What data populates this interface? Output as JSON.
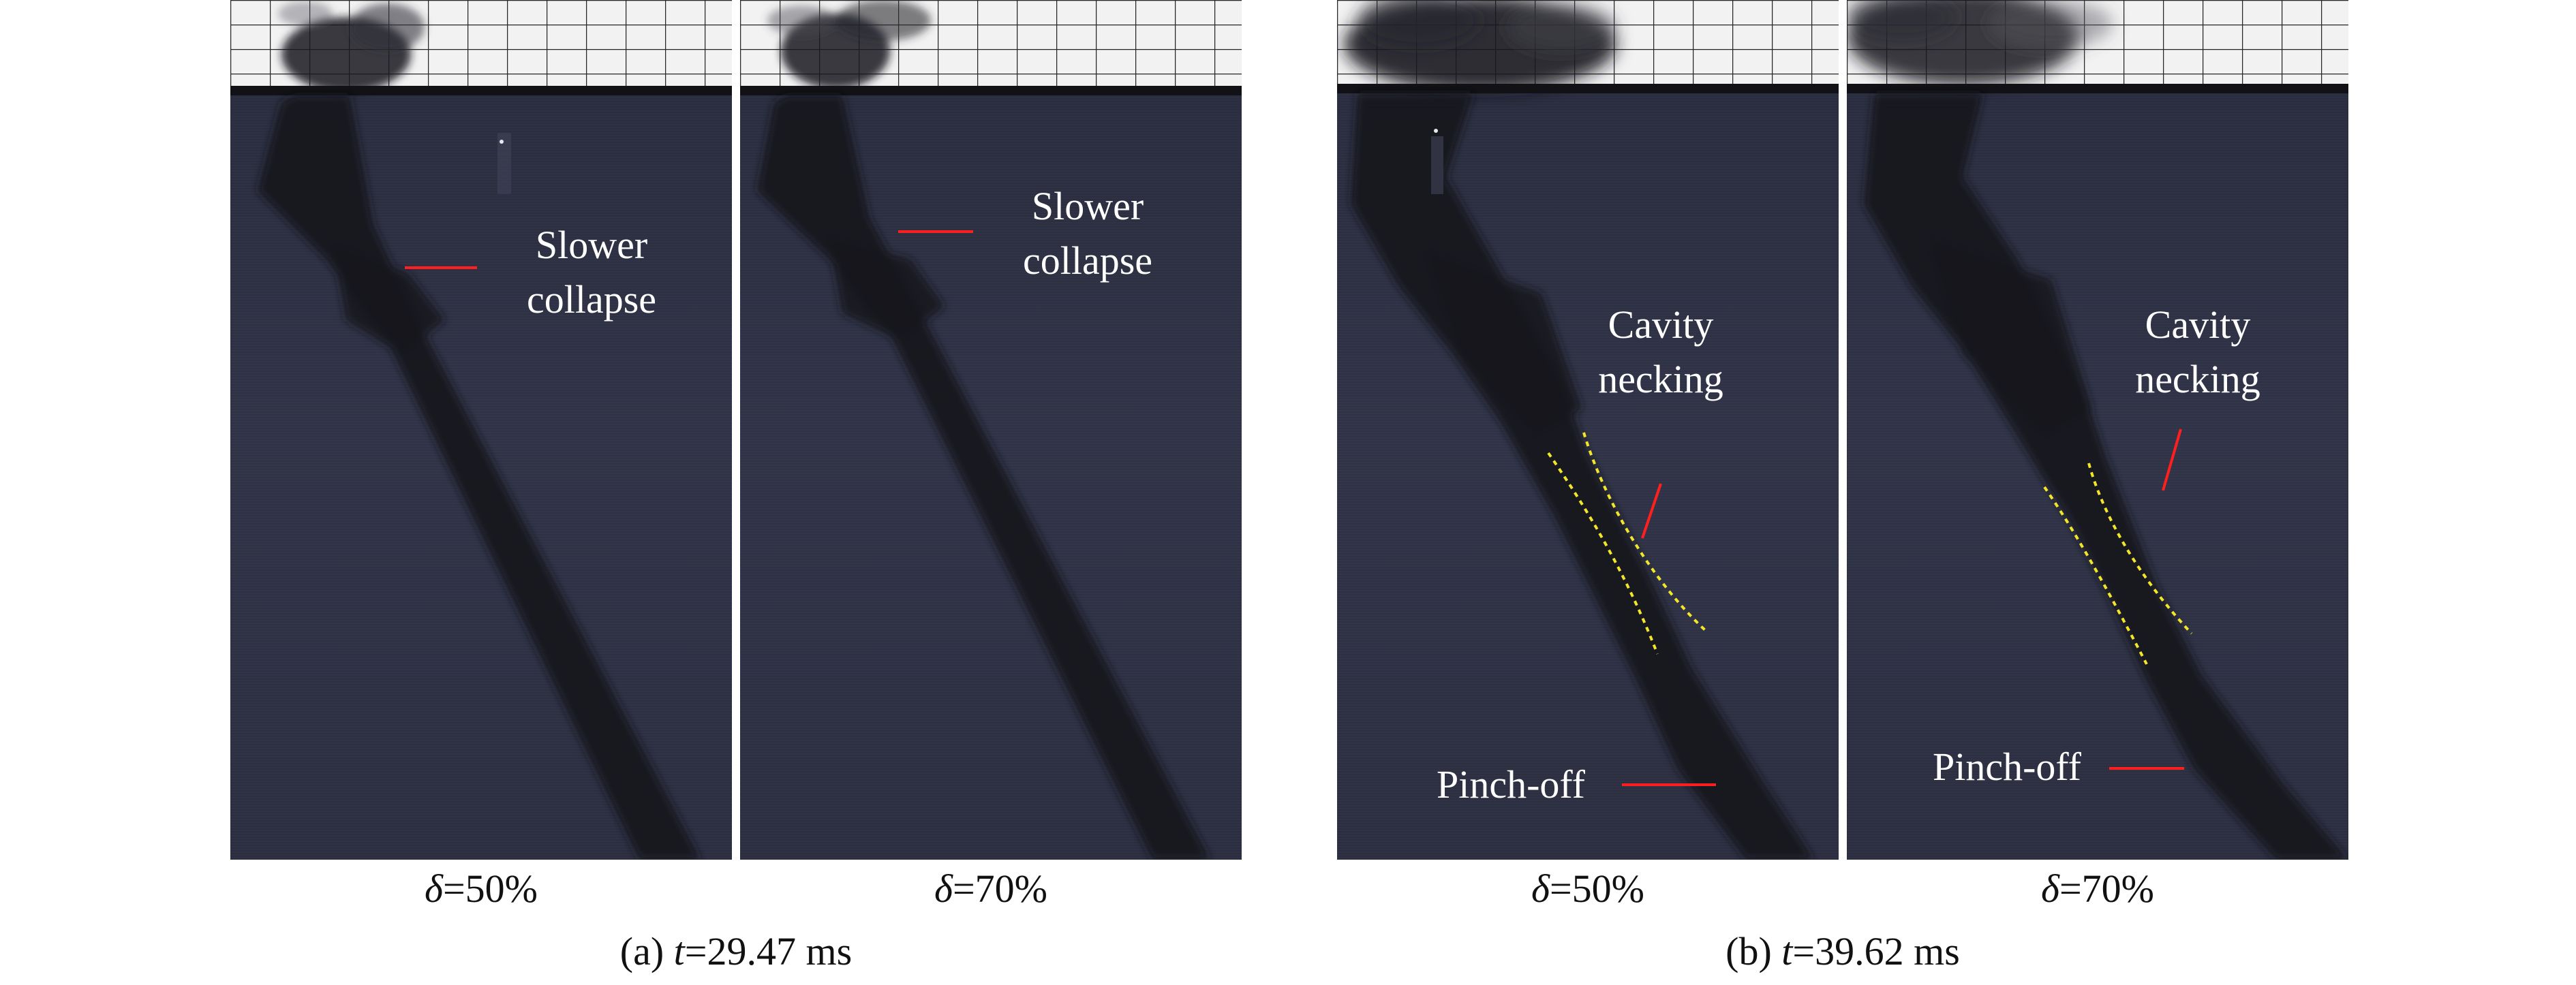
{
  "figure": {
    "groups": [
      {
        "caption_prefix": "(a) ",
        "caption_var": "t",
        "caption_value": "=29.47 ms",
        "panels": [
          {
            "delta_symbol": "δ",
            "delta_value": "=50%",
            "annotations": [
              {
                "lines": [
                  "Slower",
                  "collapse"
                ]
              }
            ]
          },
          {
            "delta_symbol": "δ",
            "delta_value": "=70%",
            "annotations": [
              {
                "lines": [
                  "Slower",
                  "collapse"
                ]
              }
            ]
          }
        ]
      },
      {
        "caption_prefix": "(b) ",
        "caption_var": "t",
        "caption_value": "=39.62 ms",
        "panels": [
          {
            "delta_symbol": "δ",
            "delta_value": "=50%",
            "annotations": [
              {
                "lines": [
                  "Cavity",
                  "necking"
                ]
              },
              {
                "lines": [
                  "Pinch-off"
                ]
              }
            ]
          },
          {
            "delta_symbol": "δ",
            "delta_value": "=70%",
            "annotations": [
              {
                "lines": [
                  "Cavity",
                  "necking"
                ]
              },
              {
                "lines": [
                  "Pinch-off"
                ]
              }
            ]
          }
        ]
      }
    ]
  },
  "colors": {
    "water": "#2f3244",
    "cavity": "#15161e",
    "air": "#f2f2f2",
    "grid": "#2a2a2a",
    "annotation_text": "#ffffff",
    "marker_red": "#ff1f1f",
    "guide_yellow": "#f2e62a"
  }
}
